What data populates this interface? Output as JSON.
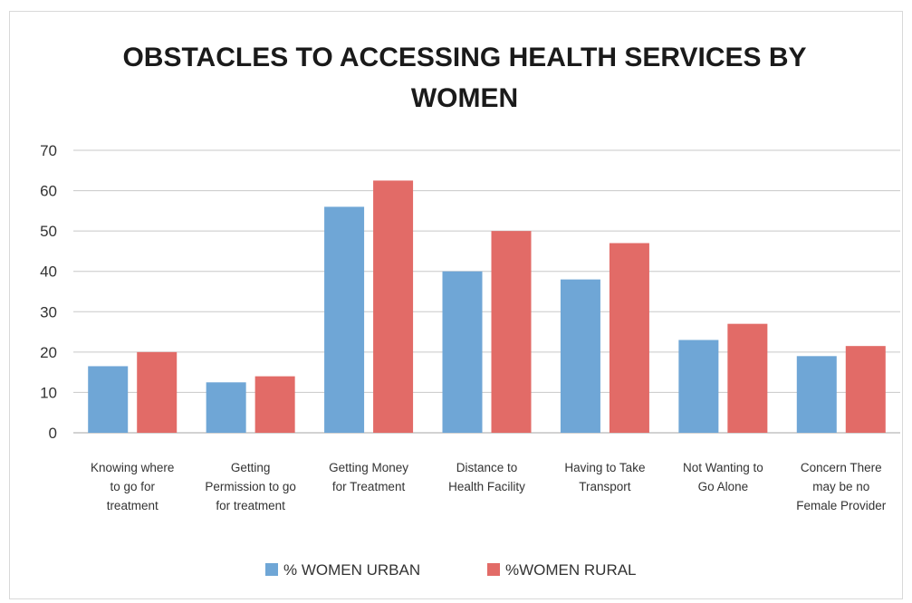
{
  "chart_data": {
    "type": "bar",
    "title": "OBSTACLES TO ACCESSING HEALTH SERVICES BY WOMEN",
    "title_lines": [
      "OBSTACLES TO ACCESSING HEALTH SERVICES BY",
      "WOMEN"
    ],
    "xlabel": "",
    "ylabel": "",
    "ylim": [
      0,
      70
    ],
    "yticks": [
      0,
      10,
      20,
      30,
      40,
      50,
      60,
      70
    ],
    "grid": true,
    "legend_position": "bottom",
    "categories": [
      "Knowing where to go for treatment",
      "Getting Permission to go for treatment",
      "Getting Money for Treatment",
      "Distance to Health Facility",
      "Having to Take Transport",
      "Not Wanting to Go Alone",
      "Concern There may be no Female Provider"
    ],
    "category_lines": [
      [
        "Knowing where",
        "to go for",
        "treatment"
      ],
      [
        "Getting",
        "Permission to go",
        "for treatment"
      ],
      [
        "Getting Money",
        "for Treatment"
      ],
      [
        "Distance to",
        "Health Facility"
      ],
      [
        "Having to Take",
        "Transport"
      ],
      [
        "Not Wanting to",
        "Go Alone"
      ],
      [
        "Concern There",
        "may be no",
        "Female Provider"
      ]
    ],
    "series": [
      {
        "name": "% WOMEN URBAN",
        "color": "#6fa6d6",
        "values": [
          16.5,
          12.5,
          56,
          40,
          38,
          23,
          19
        ]
      },
      {
        "name": "%WOMEN RURAL",
        "color": "#e26b67",
        "values": [
          20,
          14,
          62.5,
          50,
          47,
          27,
          21.5
        ]
      }
    ]
  }
}
